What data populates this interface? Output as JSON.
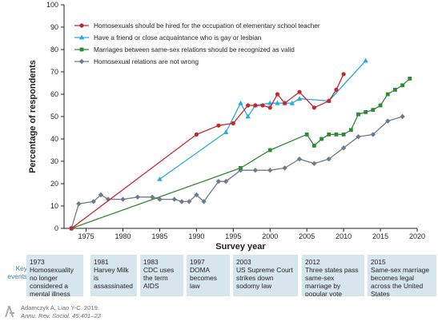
{
  "chart_data": {
    "type": "line",
    "xlabel": "Survey year",
    "ylabel": "Percentage of respondents",
    "xlim": [
      1972,
      2020
    ],
    "ylim": [
      0,
      100
    ],
    "x_ticks": [
      1975,
      1980,
      1985,
      1990,
      1995,
      2000,
      2005,
      2010,
      2015,
      2020
    ],
    "y_ticks": [
      0,
      10,
      20,
      30,
      40,
      50,
      60,
      70,
      80,
      90,
      100
    ],
    "grid": false,
    "legend_position": "top-left",
    "series": [
      {
        "name": "Homosexuals should be hired for the occupation of elementary school teacher",
        "color": "#c1272d",
        "marker": "circle",
        "points": [
          [
            1973,
            0
          ],
          [
            1990,
            42
          ],
          [
            1993,
            46
          ],
          [
            1995,
            47
          ],
          [
            1997,
            55
          ],
          [
            1998,
            55
          ],
          [
            1999,
            55
          ],
          [
            2000,
            54
          ],
          [
            2001,
            60
          ],
          [
            2002,
            56
          ],
          [
            2004,
            61
          ],
          [
            2006,
            54
          ],
          [
            2008,
            57
          ],
          [
            2009,
            62
          ],
          [
            2010,
            69
          ]
        ]
      },
      {
        "name": "Have a friend or close acquaintance who is gay or lesbian",
        "color": "#29a9e0",
        "marker": "triangle",
        "points": [
          [
            1985,
            22
          ],
          [
            1994,
            43
          ],
          [
            1996,
            56
          ],
          [
            1997,
            50
          ],
          [
            1998,
            55
          ],
          [
            2000,
            56
          ],
          [
            2001,
            56
          ],
          [
            2002,
            56
          ],
          [
            2003,
            56
          ],
          [
            2004,
            58
          ],
          [
            2008,
            57
          ],
          [
            2013,
            75
          ]
        ]
      },
      {
        "name": "Marriages between same-sex relations should be recognized as valid",
        "color": "#2e8b34",
        "marker": "square",
        "points": [
          [
            1973,
            0
          ],
          [
            1996,
            27
          ],
          [
            2000,
            35
          ],
          [
            2005,
            42
          ],
          [
            2006,
            37
          ],
          [
            2007,
            40
          ],
          [
            2008,
            42
          ],
          [
            2009,
            42
          ],
          [
            2010,
            42
          ],
          [
            2011,
            44
          ],
          [
            2012,
            51
          ],
          [
            2013,
            52
          ],
          [
            2014,
            53
          ],
          [
            2015,
            55
          ],
          [
            2016,
            60
          ],
          [
            2017,
            62
          ],
          [
            2018,
            64
          ],
          [
            2019,
            67
          ]
        ]
      },
      {
        "name": "Homosexual relations are not wrong",
        "color": "#6d7b8d",
        "marker": "diamond",
        "points": [
          [
            1973,
            0
          ],
          [
            1974,
            11
          ],
          [
            1976,
            12
          ],
          [
            1977,
            15
          ],
          [
            1978,
            13
          ],
          [
            1980,
            13
          ],
          [
            1982,
            14
          ],
          [
            1984,
            14
          ],
          [
            1985,
            13
          ],
          [
            1987,
            13
          ],
          [
            1988,
            12
          ],
          [
            1989,
            12
          ],
          [
            1990,
            15
          ],
          [
            1991,
            12
          ],
          [
            1993,
            21
          ],
          [
            1994,
            21
          ],
          [
            1996,
            26
          ],
          [
            1998,
            26
          ],
          [
            2000,
            26
          ],
          [
            2002,
            27
          ],
          [
            2004,
            31
          ],
          [
            2006,
            29
          ],
          [
            2008,
            31
          ],
          [
            2010,
            36
          ],
          [
            2012,
            41
          ],
          [
            2014,
            42
          ],
          [
            2016,
            48
          ],
          [
            2018,
            50
          ]
        ]
      }
    ]
  },
  "key_events": {
    "label": "Key events",
    "items": [
      {
        "year": "1973",
        "text": "Homosexuality no longer considered a mental illness"
      },
      {
        "year": "1981",
        "text": "Harvey Milk is assassinated"
      },
      {
        "year": "1983",
        "text": "CDC uses the term AIDS"
      },
      {
        "year": "1997",
        "text": "DOMA becomes law"
      },
      {
        "year": "2003",
        "text": "US Supreme Court strikes down sodomy law"
      },
      {
        "year": "2012",
        "text": "Three states pass same-sex marriage by popular vote"
      },
      {
        "year": "2015",
        "text": "Same-sex marriage becomes legal across the United States"
      }
    ]
  },
  "citation": {
    "authors": "Adamczyk A, Liao Y-C. 2019.",
    "journal": "Annu. Rev. Sociol. 45:401–23"
  },
  "logo": {
    "text": "AR",
    "color": "#a7a9ac"
  }
}
